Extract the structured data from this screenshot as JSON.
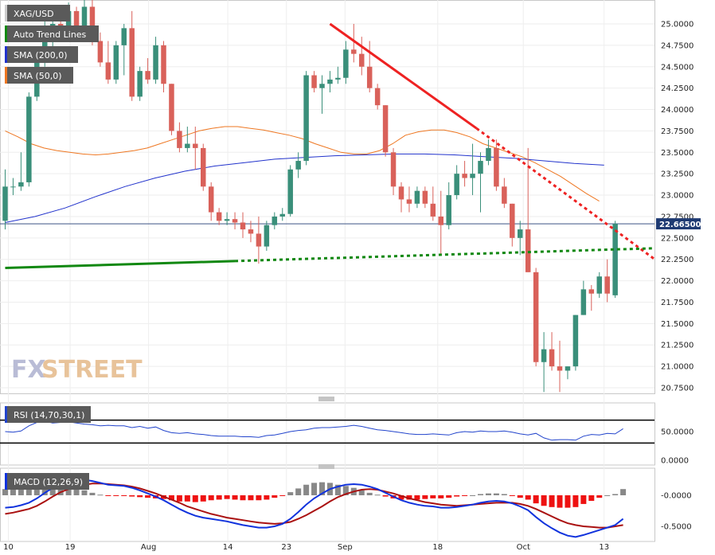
{
  "legend": [
    {
      "label": "XAG/USD",
      "color": "#cccccc"
    },
    {
      "label": "Auto Trend Lines",
      "color": "#118811"
    },
    {
      "label": "SMA (200,0)",
      "color": "#2233cc"
    },
    {
      "label": "SMA (50,0)",
      "color": "#ee7722"
    }
  ],
  "watermark": {
    "fx": "FX",
    "street": "STREET"
  },
  "price_label": "22.66500",
  "rsi": {
    "label": "RSI (14,70,30,1)",
    "levels": [
      70,
      30
    ],
    "ticks": [
      "50.0000",
      "0.0000"
    ],
    "tick_values": [
      50,
      0
    ]
  },
  "macd": {
    "label": "MACD (12,26,9)",
    "ticks": [
      "-0.0000",
      "-0.5000"
    ],
    "tick_values": [
      0,
      -0.5
    ]
  },
  "chart_data": {
    "type": "candlestick",
    "symbol": "XAG/USD",
    "main_ticks": [
      "25.0000",
      "24.7500",
      "24.5000",
      "24.2500",
      "24.0000",
      "23.7500",
      "23.5000",
      "23.2500",
      "23.0000",
      "22.7500",
      "22.5000",
      "22.2500",
      "22.0000",
      "21.7500",
      "21.5000",
      "21.2500",
      "21.0000",
      "20.7500"
    ],
    "main_tick_values": [
      25.0,
      24.75,
      24.5,
      24.25,
      24.0,
      23.75,
      23.5,
      23.25,
      23.0,
      22.75,
      22.5,
      22.25,
      22.0,
      21.75,
      21.5,
      21.25,
      21.0,
      20.75
    ],
    "ylim": [
      20.66,
      25.3
    ],
    "current_price": 22.665,
    "x_labels": [
      {
        "text": "10",
        "index": 0.4
      },
      {
        "text": "19",
        "index": 8.2
      },
      {
        "text": "Aug",
        "index": 18.1
      },
      {
        "text": "14",
        "index": 28.1
      },
      {
        "text": "23",
        "index": 35.5
      },
      {
        "text": "Sep",
        "index": 42.9
      },
      {
        "text": "18",
        "index": 54.6
      },
      {
        "text": "Oct",
        "index": 65.4
      },
      {
        "text": "13",
        "index": 75.6
      }
    ],
    "candles": [
      {
        "o": 22.7,
        "h": 23.3,
        "l": 22.6,
        "c": 23.1
      },
      {
        "o": 23.1,
        "h": 23.2,
        "l": 23.0,
        "c": 23.1
      },
      {
        "o": 23.1,
        "h": 23.5,
        "l": 23.05,
        "c": 23.15
      },
      {
        "o": 23.15,
        "h": 24.2,
        "l": 23.1,
        "c": 24.15
      },
      {
        "o": 24.15,
        "h": 24.7,
        "l": 24.1,
        "c": 24.65
      },
      {
        "o": 24.65,
        "h": 25.1,
        "l": 24.5,
        "c": 24.85
      },
      {
        "o": 24.85,
        "h": 25.1,
        "l": 24.6,
        "c": 25.0
      },
      {
        "o": 25.0,
        "h": 25.15,
        "l": 24.8,
        "c": 24.9
      },
      {
        "o": 24.9,
        "h": 25.25,
        "l": 24.8,
        "c": 25.15
      },
      {
        "o": 25.15,
        "h": 25.2,
        "l": 24.9,
        "c": 24.95
      },
      {
        "o": 24.95,
        "h": 25.3,
        "l": 24.8,
        "c": 25.2
      },
      {
        "o": 25.2,
        "h": 25.3,
        "l": 24.75,
        "c": 24.8
      },
      {
        "o": 24.8,
        "h": 24.9,
        "l": 24.5,
        "c": 24.55
      },
      {
        "o": 24.55,
        "h": 24.8,
        "l": 24.3,
        "c": 24.35
      },
      {
        "o": 24.35,
        "h": 24.8,
        "l": 24.3,
        "c": 24.75
      },
      {
        "o": 24.75,
        "h": 25.0,
        "l": 24.4,
        "c": 24.95
      },
      {
        "o": 24.95,
        "h": 25.15,
        "l": 24.1,
        "c": 24.15
      },
      {
        "o": 24.15,
        "h": 24.5,
        "l": 24.1,
        "c": 24.45
      },
      {
        "o": 24.45,
        "h": 24.6,
        "l": 24.3,
        "c": 24.35
      },
      {
        "o": 24.35,
        "h": 24.85,
        "l": 24.3,
        "c": 24.75
      },
      {
        "o": 24.75,
        "h": 24.8,
        "l": 24.2,
        "c": 24.3
      },
      {
        "o": 24.3,
        "h": 24.3,
        "l": 23.7,
        "c": 23.75
      },
      {
        "o": 23.75,
        "h": 23.85,
        "l": 23.5,
        "c": 23.55
      },
      {
        "o": 23.55,
        "h": 23.8,
        "l": 23.5,
        "c": 23.6
      },
      {
        "o": 23.6,
        "h": 23.8,
        "l": 23.3,
        "c": 23.55
      },
      {
        "o": 23.55,
        "h": 23.6,
        "l": 23.05,
        "c": 23.1
      },
      {
        "o": 23.1,
        "h": 23.15,
        "l": 22.7,
        "c": 22.8
      },
      {
        "o": 22.8,
        "h": 22.85,
        "l": 22.65,
        "c": 22.7
      },
      {
        "o": 22.7,
        "h": 22.8,
        "l": 22.65,
        "c": 22.72
      },
      {
        "o": 22.72,
        "h": 22.8,
        "l": 22.6,
        "c": 22.68
      },
      {
        "o": 22.68,
        "h": 22.8,
        "l": 22.5,
        "c": 22.6
      },
      {
        "o": 22.6,
        "h": 22.7,
        "l": 22.45,
        "c": 22.55
      },
      {
        "o": 22.55,
        "h": 22.75,
        "l": 22.2,
        "c": 22.4
      },
      {
        "o": 22.4,
        "h": 22.7,
        "l": 22.35,
        "c": 22.65
      },
      {
        "o": 22.65,
        "h": 22.8,
        "l": 22.6,
        "c": 22.75
      },
      {
        "o": 22.75,
        "h": 22.85,
        "l": 22.7,
        "c": 22.78
      },
      {
        "o": 22.78,
        "h": 23.35,
        "l": 22.75,
        "c": 23.3
      },
      {
        "o": 23.3,
        "h": 23.5,
        "l": 23.2,
        "c": 23.4
      },
      {
        "o": 23.4,
        "h": 24.45,
        "l": 23.35,
        "c": 24.4
      },
      {
        "o": 24.4,
        "h": 24.45,
        "l": 24.2,
        "c": 24.25
      },
      {
        "o": 24.25,
        "h": 24.4,
        "l": 23.95,
        "c": 24.3
      },
      {
        "o": 24.3,
        "h": 24.45,
        "l": 24.2,
        "c": 24.35
      },
      {
        "o": 24.35,
        "h": 24.5,
        "l": 24.3,
        "c": 24.37
      },
      {
        "o": 24.37,
        "h": 24.8,
        "l": 24.3,
        "c": 24.7
      },
      {
        "o": 24.7,
        "h": 25.0,
        "l": 24.55,
        "c": 24.65
      },
      {
        "o": 24.65,
        "h": 24.85,
        "l": 24.4,
        "c": 24.5
      },
      {
        "o": 24.5,
        "h": 24.8,
        "l": 24.2,
        "c": 24.25
      },
      {
        "o": 24.25,
        "h": 24.3,
        "l": 24.0,
        "c": 24.05
      },
      {
        "o": 24.05,
        "h": 24.05,
        "l": 23.45,
        "c": 23.5
      },
      {
        "o": 23.5,
        "h": 23.55,
        "l": 23.0,
        "c": 23.1
      },
      {
        "o": 23.1,
        "h": 23.15,
        "l": 22.8,
        "c": 22.95
      },
      {
        "o": 22.95,
        "h": 23.1,
        "l": 22.8,
        "c": 22.9
      },
      {
        "o": 22.9,
        "h": 23.1,
        "l": 22.85,
        "c": 23.05
      },
      {
        "o": 23.05,
        "h": 23.1,
        "l": 22.85,
        "c": 22.9
      },
      {
        "o": 22.9,
        "h": 23.1,
        "l": 22.7,
        "c": 22.75
      },
      {
        "o": 22.75,
        "h": 23.05,
        "l": 22.3,
        "c": 22.65
      },
      {
        "o": 22.65,
        "h": 23.15,
        "l": 22.6,
        "c": 23.0
      },
      {
        "o": 23.0,
        "h": 23.35,
        "l": 22.95,
        "c": 23.25
      },
      {
        "o": 23.25,
        "h": 23.4,
        "l": 23.1,
        "c": 23.2
      },
      {
        "o": 23.2,
        "h": 23.6,
        "l": 23.0,
        "c": 23.25
      },
      {
        "o": 23.25,
        "h": 23.5,
        "l": 22.8,
        "c": 23.4
      },
      {
        "o": 23.4,
        "h": 23.65,
        "l": 23.35,
        "c": 23.55
      },
      {
        "o": 23.55,
        "h": 23.65,
        "l": 23.05,
        "c": 23.1
      },
      {
        "o": 23.1,
        "h": 23.2,
        "l": 22.85,
        "c": 22.9
      },
      {
        "o": 22.9,
        "h": 22.9,
        "l": 22.4,
        "c": 22.5
      },
      {
        "o": 22.5,
        "h": 22.7,
        "l": 22.3,
        "c": 22.6
      },
      {
        "o": 22.6,
        "h": 23.55,
        "l": 22.1,
        "c": 22.1
      },
      {
        "o": 22.1,
        "h": 22.15,
        "l": 21.0,
        "c": 21.05
      },
      {
        "o": 21.05,
        "h": 21.4,
        "l": 20.7,
        "c": 21.2
      },
      {
        "o": 21.2,
        "h": 21.4,
        "l": 20.95,
        "c": 21.0
      },
      {
        "o": 21.0,
        "h": 21.3,
        "l": 20.7,
        "c": 20.95
      },
      {
        "o": 20.95,
        "h": 21.0,
        "l": 20.85,
        "c": 21.0
      },
      {
        "o": 21.0,
        "h": 21.6,
        "l": 20.95,
        "c": 21.6
      },
      {
        "o": 21.6,
        "h": 22.0,
        "l": 21.6,
        "c": 21.9
      },
      {
        "o": 21.9,
        "h": 21.95,
        "l": 21.65,
        "c": 21.85
      },
      {
        "o": 21.85,
        "h": 22.1,
        "l": 21.8,
        "c": 22.05
      },
      {
        "o": 22.05,
        "h": 22.25,
        "l": 21.75,
        "c": 21.85
      },
      {
        "o": 21.83,
        "h": 22.7,
        "l": 21.8,
        "c": 22.665
      }
    ],
    "sma50": [
      23.75,
      23.68,
      23.6,
      23.55,
      23.52,
      23.5,
      23.48,
      23.47,
      23.48,
      23.5,
      23.52,
      23.55,
      23.6,
      23.65,
      23.7,
      23.75,
      23.78,
      23.8,
      23.8,
      23.78,
      23.76,
      23.73,
      23.7,
      23.66,
      23.6,
      23.55,
      23.5,
      23.48,
      23.48,
      23.52,
      23.6,
      23.7,
      23.74,
      23.76,
      23.76,
      23.73,
      23.68,
      23.6,
      23.55,
      23.5,
      23.45,
      23.38,
      23.3,
      23.22,
      23.12,
      23.02,
      22.93
    ],
    "sma50_start": 0,
    "sma50_step": 1.63,
    "sma200": [
      22.68,
      22.75,
      22.85,
      22.98,
      23.1,
      23.2,
      23.28,
      23.34,
      23.38,
      23.42,
      23.44,
      23.46,
      23.47,
      23.48,
      23.48,
      23.47,
      23.45,
      23.43,
      23.4,
      23.37,
      23.35
    ],
    "sma200_start": 0,
    "sma200_step": 3.78,
    "trend_red": {
      "solid": [
        [
          41.0,
          25.0
        ],
        [
          59.5,
          23.78
        ]
      ],
      "dotted_to": [
        82.0,
        22.25
      ]
    },
    "trend_green": {
      "solid": [
        [
          0,
          22.15
        ],
        [
          29.0,
          22.23
        ]
      ],
      "dotted_to": [
        82.0,
        22.38
      ]
    },
    "rsi_values": [
      50,
      49,
      51,
      60,
      66,
      68,
      65,
      66,
      67,
      65,
      63,
      62,
      60,
      61,
      60,
      60,
      57,
      59,
      56,
      58,
      52,
      48,
      47,
      48,
      46,
      45,
      43,
      42,
      42,
      42,
      41,
      41,
      40,
      43,
      44,
      47,
      50,
      52,
      53,
      56,
      57,
      57,
      58,
      59,
      61,
      59,
      56,
      53,
      52,
      50,
      48,
      46,
      45,
      45,
      46,
      45,
      44,
      48,
      50,
      49,
      51,
      50,
      50,
      51,
      49,
      46,
      44,
      47,
      39,
      35,
      36,
      36,
      35,
      42,
      45,
      44,
      47,
      46,
      55
    ],
    "macd_line": [
      -0.2,
      -0.19,
      -0.16,
      -0.12,
      -0.05,
      0.04,
      0.12,
      0.19,
      0.23,
      0.25,
      0.25,
      0.23,
      0.2,
      0.17,
      0.16,
      0.15,
      0.12,
      0.08,
      0.03,
      -0.02,
      -0.08,
      -0.15,
      -0.22,
      -0.28,
      -0.33,
      -0.36,
      -0.38,
      -0.4,
      -0.42,
      -0.45,
      -0.48,
      -0.5,
      -0.52,
      -0.52,
      -0.5,
      -0.46,
      -0.38,
      -0.27,
      -0.15,
      -0.05,
      0.03,
      0.1,
      0.14,
      0.17,
      0.18,
      0.17,
      0.14,
      0.1,
      0.04,
      -0.02,
      -0.08,
      -0.12,
      -0.15,
      -0.17,
      -0.18,
      -0.2,
      -0.2,
      -0.19,
      -0.17,
      -0.15,
      -0.12,
      -0.1,
      -0.09,
      -0.1,
      -0.13,
      -0.18,
      -0.24,
      -0.35,
      -0.45,
      -0.53,
      -0.6,
      -0.65,
      -0.67,
      -0.64,
      -0.6,
      -0.56,
      -0.52,
      -0.48,
      -0.38
    ],
    "macd_signal": [
      -0.3,
      -0.28,
      -0.25,
      -0.22,
      -0.17,
      -0.1,
      -0.02,
      0.05,
      0.1,
      0.14,
      0.17,
      0.19,
      0.19,
      0.18,
      0.17,
      0.16,
      0.14,
      0.11,
      0.07,
      0.03,
      -0.02,
      -0.07,
      -0.12,
      -0.18,
      -0.22,
      -0.26,
      -0.3,
      -0.33,
      -0.36,
      -0.38,
      -0.4,
      -0.42,
      -0.44,
      -0.45,
      -0.46,
      -0.45,
      -0.43,
      -0.38,
      -0.32,
      -0.25,
      -0.18,
      -0.1,
      -0.03,
      0.02,
      0.06,
      0.09,
      0.1,
      0.09,
      0.06,
      0.03,
      -0.01,
      -0.05,
      -0.08,
      -0.11,
      -0.13,
      -0.15,
      -0.16,
      -0.17,
      -0.16,
      -0.15,
      -0.14,
      -0.13,
      -0.12,
      -0.12,
      -0.12,
      -0.14,
      -0.17,
      -0.22,
      -0.28,
      -0.34,
      -0.4,
      -0.45,
      -0.48,
      -0.5,
      -0.51,
      -0.52,
      -0.52,
      -0.5,
      -0.48
    ]
  }
}
